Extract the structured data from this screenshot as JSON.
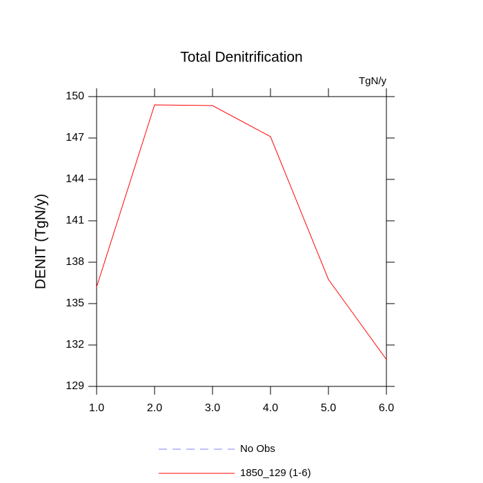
{
  "chart_data": {
    "type": "line",
    "title": "Total Denitrification",
    "units": "TgN/y",
    "y_label": "DENIT  (TgN/y)",
    "x": [
      1,
      2,
      3,
      4,
      5,
      6
    ],
    "xlim": [
      1,
      6
    ],
    "xticks": [
      {
        "value": 1,
        "label": "1.0"
      },
      {
        "value": 2,
        "label": "2.0"
      },
      {
        "value": 3,
        "label": "3.0"
      },
      {
        "value": 4,
        "label": "4.0"
      },
      {
        "value": 5,
        "label": "5.0"
      },
      {
        "value": 6,
        "label": "6.0"
      }
    ],
    "ylim": [
      129,
      150
    ],
    "yticks": [
      129,
      132,
      135,
      138,
      141,
      144,
      147,
      150
    ],
    "series": [
      {
        "name": "No Obs",
        "color": "#8080ff",
        "dash": true,
        "values": [
          null,
          null,
          null,
          null,
          null,
          null
        ]
      },
      {
        "name": "1850_129 (1-6)",
        "color": "#ff0000",
        "dash": false,
        "values": [
          136.2,
          149.4,
          149.35,
          147.1,
          136.75,
          130.95
        ]
      }
    ]
  }
}
